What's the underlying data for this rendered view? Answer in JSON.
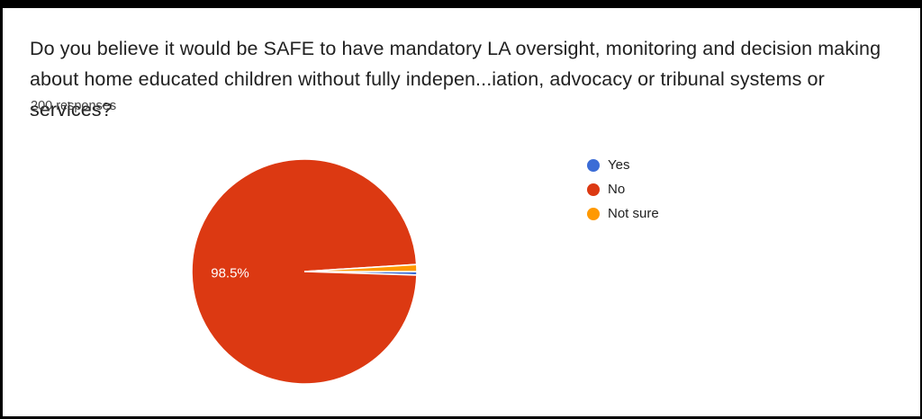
{
  "card": {
    "title": "Do you believe it would be SAFE to have mandatory LA oversight, monitoring and decision making about home educated children without fully indepen...iation, advocacy or tribunal systems or services?",
    "responses_count": "200 responses"
  },
  "chart_data": {
    "type": "pie",
    "title": "Do you believe it would be SAFE to have mandatory LA oversight, monitoring and decision making about home educated children without fully indepen...iation, advocacy or tribunal systems or services?",
    "subtitle": "200 responses",
    "labels": [
      "Yes",
      "No",
      "Not sure"
    ],
    "values": [
      0.5,
      98.5,
      1.0
    ],
    "colors": [
      "#3B6CD6",
      "#DC3912",
      "#FF9900"
    ],
    "displayed_slice_labels": [
      "",
      "98.5%",
      ""
    ],
    "legend_position": "right",
    "slice_label_color": "#ffffff",
    "stroke_color": "#ffffff"
  }
}
